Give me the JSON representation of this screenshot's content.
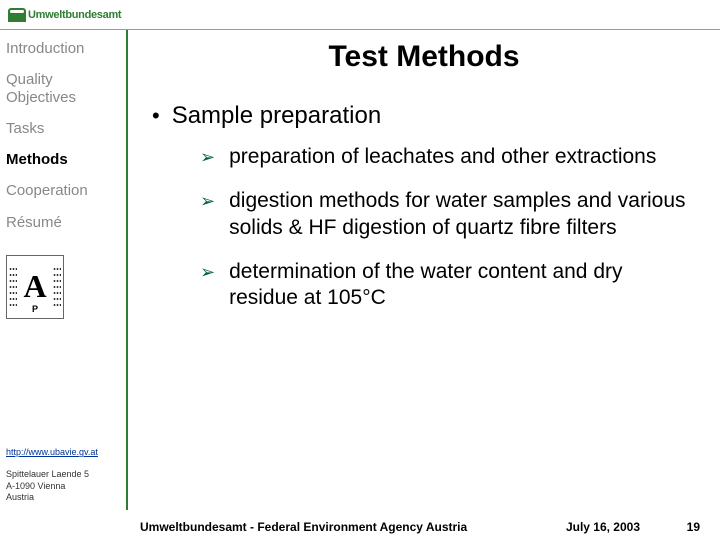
{
  "logo_text": "Umweltbundesamt",
  "nav": [
    {
      "label": "Introduction",
      "active": false
    },
    {
      "label": "Quality Objectives",
      "active": false
    },
    {
      "label": "Tasks",
      "active": false
    },
    {
      "label": "Methods",
      "active": true
    },
    {
      "label": "Cooperation",
      "active": false
    },
    {
      "label": "Résumé",
      "active": false
    }
  ],
  "url": "http://www.ubavie.gv.at",
  "address": [
    "Spittelauer Laende 5",
    "A-1090 Vienna",
    "Austria"
  ],
  "title": "Test Methods",
  "bullet_main": "Sample preparation",
  "sub_items": [
    "preparation of leachates and other extractions",
    "digestion methods for water samples and various solids &  HF digestion of quartz fibre filters",
    "determination of the water content and dry residue at 105°C"
  ],
  "footer_org": "Umweltbundesamt - Federal Environment Agency Austria",
  "footer_date": "July 16, 2003",
  "slide_number": "19",
  "colors": {
    "accent": "#2e7d32",
    "nav_inactive": "#888888",
    "arrow": "#006633",
    "link": "#003399"
  }
}
